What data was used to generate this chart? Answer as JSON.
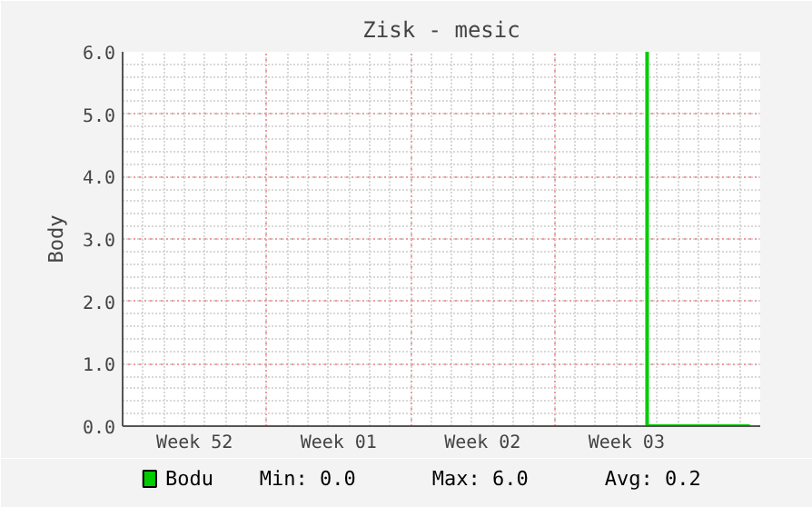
{
  "chart_data": {
    "type": "step",
    "title": "Zisk - mesic",
    "ylabel": "Body",
    "categories": [
      null,
      null,
      null,
      "Week 52",
      null,
      null,
      null,
      null,
      null,
      null,
      "Week 01",
      null,
      null,
      null,
      null,
      null,
      null,
      "Week 02",
      null,
      null,
      null,
      null,
      null,
      null,
      "Week 03",
      null,
      null,
      null,
      null,
      null,
      null
    ],
    "series": [
      {
        "name": "Bodu",
        "color": "#00cc00",
        "values": [
          null,
          null,
          null,
          null,
          null,
          null,
          null,
          null,
          null,
          null,
          null,
          null,
          null,
          null,
          null,
          null,
          null,
          null,
          null,
          null,
          null,
          null,
          null,
          null,
          null,
          6,
          0,
          0,
          0,
          0,
          0
        ]
      }
    ],
    "ylim": [
      0,
      6
    ],
    "yticks": [
      {
        "value": 0,
        "label": "0.0"
      },
      {
        "value": 1,
        "label": "1.0"
      },
      {
        "value": 2,
        "label": "2.0"
      },
      {
        "value": 3,
        "label": "3.0"
      },
      {
        "value": 4,
        "label": "4.0"
      },
      {
        "value": 5,
        "label": "5.0"
      },
      {
        "value": 6,
        "label": "6.0"
      }
    ],
    "grid": true,
    "legend": "bottom left",
    "marker": "none",
    "line_style": "solid",
    "annotations": [
      "Min:    0.0",
      "Max:    6.0",
      "Avg:    0.2"
    ]
  }
}
